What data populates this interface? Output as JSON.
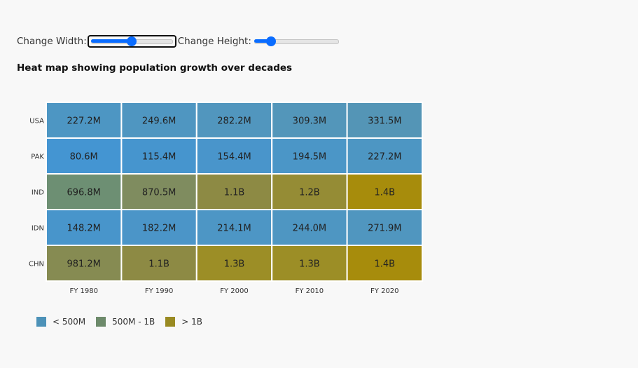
{
  "controls": {
    "width_label": "Change Width:",
    "width_value": 0.5,
    "height_label": "Change Height:",
    "height_value": 0.2
  },
  "chart_data": {
    "type": "heatmap",
    "title": "Heat map showing population growth over decades",
    "x_categories": [
      "FY 1980",
      "FY 1990",
      "FY 2000",
      "FY 2010",
      "FY 2020"
    ],
    "y_categories": [
      "USA",
      "PAK",
      "IND",
      "IDN",
      "CHN"
    ],
    "cells": [
      {
        "row": "USA",
        "col": "FY 1980",
        "value": 227.2,
        "label": "227.2M"
      },
      {
        "row": "USA",
        "col": "FY 1990",
        "value": 249.6,
        "label": "249.6M"
      },
      {
        "row": "USA",
        "col": "FY 2000",
        "value": 282.2,
        "label": "282.2M"
      },
      {
        "row": "USA",
        "col": "FY 2010",
        "value": 309.3,
        "label": "309.3M"
      },
      {
        "row": "USA",
        "col": "FY 2020",
        "value": 331.5,
        "label": "331.5M"
      },
      {
        "row": "PAK",
        "col": "FY 1980",
        "value": 80.6,
        "label": "80.6M"
      },
      {
        "row": "PAK",
        "col": "FY 1990",
        "value": 115.4,
        "label": "115.4M"
      },
      {
        "row": "PAK",
        "col": "FY 2000",
        "value": 154.4,
        "label": "154.4M"
      },
      {
        "row": "PAK",
        "col": "FY 2010",
        "value": 194.5,
        "label": "194.5M"
      },
      {
        "row": "PAK",
        "col": "FY 2020",
        "value": 227.2,
        "label": "227.2M"
      },
      {
        "row": "IND",
        "col": "FY 1980",
        "value": 696.8,
        "label": "696.8M"
      },
      {
        "row": "IND",
        "col": "FY 1990",
        "value": 870.5,
        "label": "870.5M"
      },
      {
        "row": "IND",
        "col": "FY 2000",
        "value": 1100,
        "label": "1.1B"
      },
      {
        "row": "IND",
        "col": "FY 2010",
        "value": 1200,
        "label": "1.2B"
      },
      {
        "row": "IND",
        "col": "FY 2020",
        "value": 1400,
        "label": "1.4B"
      },
      {
        "row": "IDN",
        "col": "FY 1980",
        "value": 148.2,
        "label": "148.2M"
      },
      {
        "row": "IDN",
        "col": "FY 1990",
        "value": 182.2,
        "label": "182.2M"
      },
      {
        "row": "IDN",
        "col": "FY 2000",
        "value": 214.1,
        "label": "214.1M"
      },
      {
        "row": "IDN",
        "col": "FY 2010",
        "value": 244.0,
        "label": "244.0M"
      },
      {
        "row": "IDN",
        "col": "FY 2020",
        "value": 271.9,
        "label": "271.9M"
      },
      {
        "row": "CHN",
        "col": "FY 1980",
        "value": 981.2,
        "label": "981.2M"
      },
      {
        "row": "CHN",
        "col": "FY 1990",
        "value": 1100,
        "label": "1.1B"
      },
      {
        "row": "CHN",
        "col": "FY 2000",
        "value": 1300,
        "label": "1.3B"
      },
      {
        "row": "CHN",
        "col": "FY 2010",
        "value": 1300,
        "label": "1.3B"
      },
      {
        "row": "CHN",
        "col": "FY 2020",
        "value": 1400,
        "label": "1.4B"
      }
    ],
    "color_scale": [
      {
        "value": 80,
        "color": "#4495d2"
      },
      {
        "value": 300,
        "color": "#5296bc"
      },
      {
        "value": 700,
        "color": "#6d8f72"
      },
      {
        "value": 900,
        "color": "#828b5c"
      },
      {
        "value": 1100,
        "color": "#8d8a44"
      },
      {
        "value": 1300,
        "color": "#9c8e26"
      },
      {
        "value": 1400,
        "color": "#a78c0c"
      }
    ],
    "legend": [
      {
        "label": "< 500M",
        "color": "#4d92b8"
      },
      {
        "label": "500M - 1B",
        "color": "#6d8a6b"
      },
      {
        "label": "> 1B",
        "color": "#998a22"
      }
    ],
    "legend_position": "bottom-left",
    "grid": false
  }
}
